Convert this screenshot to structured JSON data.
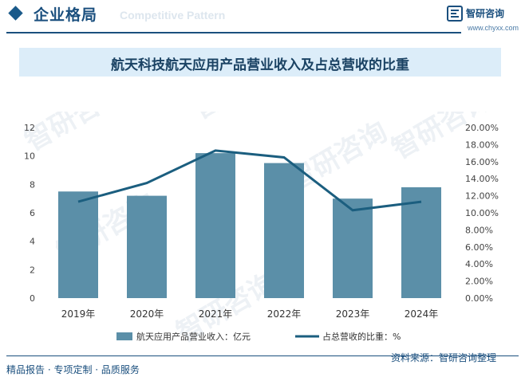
{
  "header": {
    "title": "企业格局",
    "ghost_text": "Competitive Pattern",
    "logo_name": "智研咨询",
    "logo_url": "www.chyxx.com",
    "accent": "#1a4f7e"
  },
  "chart_data": {
    "type": "bar",
    "title": "航天科技航天应用产品营业收入及占总营收的比重",
    "categories": [
      "2019年",
      "2020年",
      "2021年",
      "2022年",
      "2023年",
      "2024年"
    ],
    "series": [
      {
        "name": "航天应用产品营业收入：亿元",
        "type": "bar",
        "axis": "left",
        "values": [
          7.5,
          7.2,
          10.2,
          9.5,
          7.0,
          7.8
        ],
        "color": "#5b8fa8"
      },
      {
        "name": "占总营收的比重：%",
        "type": "line",
        "axis": "right",
        "values": [
          11.3,
          13.5,
          17.3,
          16.5,
          10.3,
          11.3
        ],
        "color": "#1b5e7f"
      }
    ],
    "left_axis": {
      "min": 0,
      "max": 12,
      "ticks": [
        "0",
        "2",
        "4",
        "6",
        "8",
        "10",
        "12"
      ]
    },
    "right_axis": {
      "min": 0,
      "max": 20,
      "ticks": [
        "0.00%",
        "2.00%",
        "4.00%",
        "6.00%",
        "8.00%",
        "10.00%",
        "12.00%",
        "14.00%",
        "16.00%",
        "18.00%",
        "20.00%"
      ]
    },
    "legend_position": "bottom",
    "grid": false
  },
  "footer": {
    "left": "精品报告 · 专项定制 · 品质服务",
    "right": "资料来源：智研咨询整理"
  }
}
